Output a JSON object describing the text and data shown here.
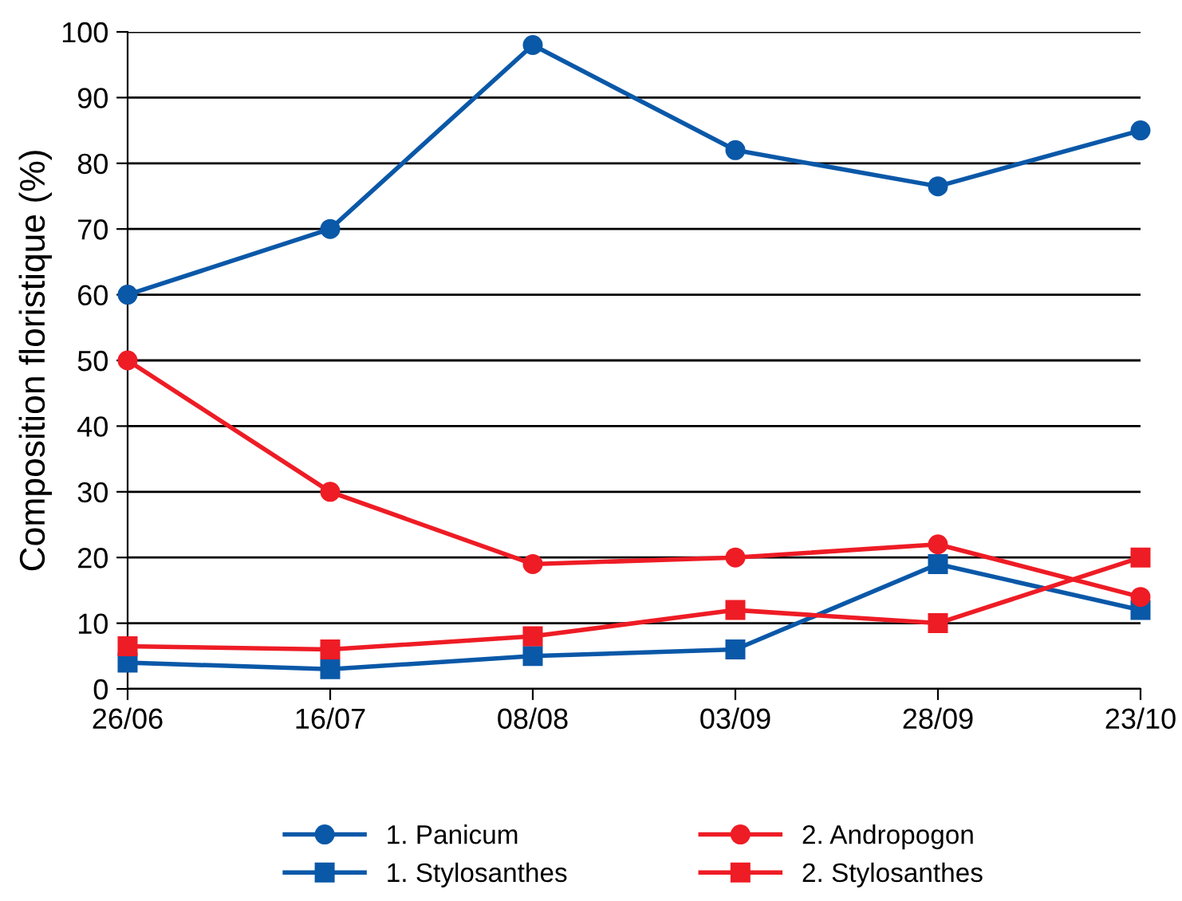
{
  "chart_data": {
    "type": "line",
    "ylabel": "Composition floristique (%)",
    "categories": [
      "26/06",
      "16/07",
      "08/08",
      "03/09",
      "28/09",
      "23/10"
    ],
    "series": [
      {
        "name": "1. Panicum",
        "color": "#0a58a8",
        "marker": "circle",
        "values": [
          60,
          70,
          98,
          82,
          76.5,
          85
        ]
      },
      {
        "name": "1. Stylosanthes",
        "color": "#0a58a8",
        "marker": "square",
        "values": [
          4,
          3,
          5,
          6,
          19,
          12
        ]
      },
      {
        "name": "2. Andropogon",
        "color": "#ee1c25",
        "marker": "circle",
        "values": [
          50,
          30,
          19,
          20,
          22,
          14
        ]
      },
      {
        "name": "2. Stylosanthes",
        "color": "#ee1c25",
        "marker": "square",
        "values": [
          6.5,
          6,
          8,
          12,
          10,
          20
        ]
      }
    ],
    "ylim": [
      0,
      100
    ],
    "yticks": [
      0,
      10,
      20,
      30,
      40,
      50,
      60,
      70,
      80,
      90,
      100
    ],
    "grid": "y",
    "legend": "bottom",
    "line_style": "solid"
  }
}
